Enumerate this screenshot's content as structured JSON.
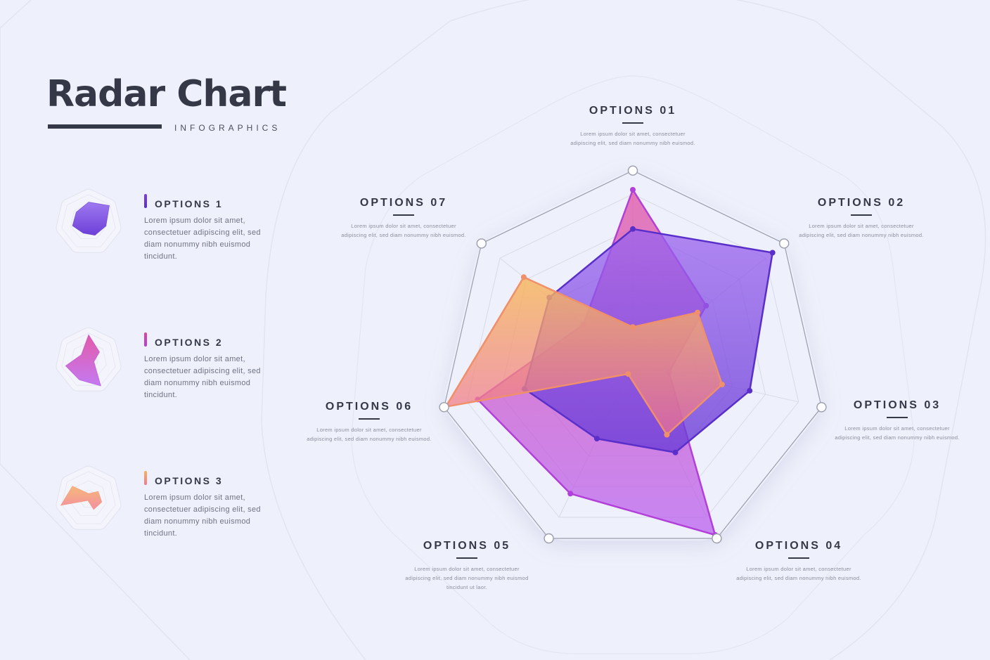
{
  "header": {
    "title": "Radar Chart",
    "subtitle": "INFOGRAPHICS"
  },
  "legend": [
    {
      "label": "OPTIONS 1",
      "desc": "Lorem ipsum dolor sit amet, consectetuer adipiscing elit, sed diam nonummy nibh euismod tincidunt."
    },
    {
      "label": "OPTIONS 2",
      "desc": "Lorem ipsum dolor sit amet, consectetuer adipiscing elit, sed diam nonummy nibh euismod tincidunt."
    },
    {
      "label": "OPTIONS 3",
      "desc": "Lorem ipsum dolor sit amet, consectetuer adipiscing elit, sed diam nonummy nibh euismod tincidunt."
    }
  ],
  "axes": [
    {
      "title": "OPTIONS 01",
      "desc": "Lorem ipsum dolor sit amet, consectetuer adipiscing elit, sed diam nonummy nibh euismod."
    },
    {
      "title": "OPTIONS 02",
      "desc": "Lorem ipsum dolor sit amet, consectetuer adipiscing elit, sed diam nonummy nibh euismod."
    },
    {
      "title": "OPTIONS 03",
      "desc": "Lorem ipsum dolor sit amet, consectetuer adipiscing elit, sed diam nonummy nibh euismod."
    },
    {
      "title": "OPTIONS 04",
      "desc": "Lorem ipsum dolor sit amet, consectetuer adipiscing elit, sed diam nonummy nibh euismod."
    },
    {
      "title": "OPTIONS 05",
      "desc": "Lorem ipsum dolor sit amet, consectetuer adipiscing elit, sed diam nonummy nibh euismod tincidunt ut laor."
    },
    {
      "title": "OPTIONS 06",
      "desc": "Lorem ipsum dolor sit amet, consectetuer adipiscing elit, sed diam nonummy nibh euismod."
    },
    {
      "title": "OPTIONS 07",
      "desc": "Lorem ipsum dolor sit amet, consectetuer adipiscing elit, sed diam nonummy nibh euismod."
    }
  ],
  "colors": {
    "background": "#eef0fb",
    "text_dark": "#343847",
    "series1_fill": "#8b4fe6",
    "series1_stroke": "#5a2fc9",
    "series2_fill": "#c257e8",
    "series2_stroke": "#b23fd9",
    "series2_accent": "#e0459c",
    "series3_fill_top": "#f6b25c",
    "series3_fill_bottom": "#f07a90",
    "series3_stroke": "#f0906a",
    "grid": "#d8dbe6",
    "outer_ring": "#9a9dab"
  },
  "chart_data": {
    "type": "radar",
    "categories": [
      "OPTIONS 01",
      "OPTIONS 02",
      "OPTIONS 03",
      "OPTIONS 04",
      "OPTIONS 05",
      "OPTIONS 06",
      "OPTIONS 07"
    ],
    "range": [
      0,
      1
    ],
    "rings": 5,
    "grid": true,
    "series": [
      {
        "name": "OPTIONS 1",
        "values": [
          0.62,
          0.82,
          0.55,
          0.45,
          0.38,
          0.51,
          0.49
        ],
        "color": "#8b4fe6"
      },
      {
        "name": "OPTIONS 2",
        "values": [
          0.8,
          0.43,
          0.17,
          0.87,
          0.66,
          0.73,
          0.29
        ],
        "color": "#c257e8"
      },
      {
        "name": "OPTIONS 3",
        "values": [
          0.17,
          0.38,
          0.42,
          0.36,
          0.05,
          0.88,
          0.64
        ],
        "color": "#f0906a"
      }
    ]
  }
}
